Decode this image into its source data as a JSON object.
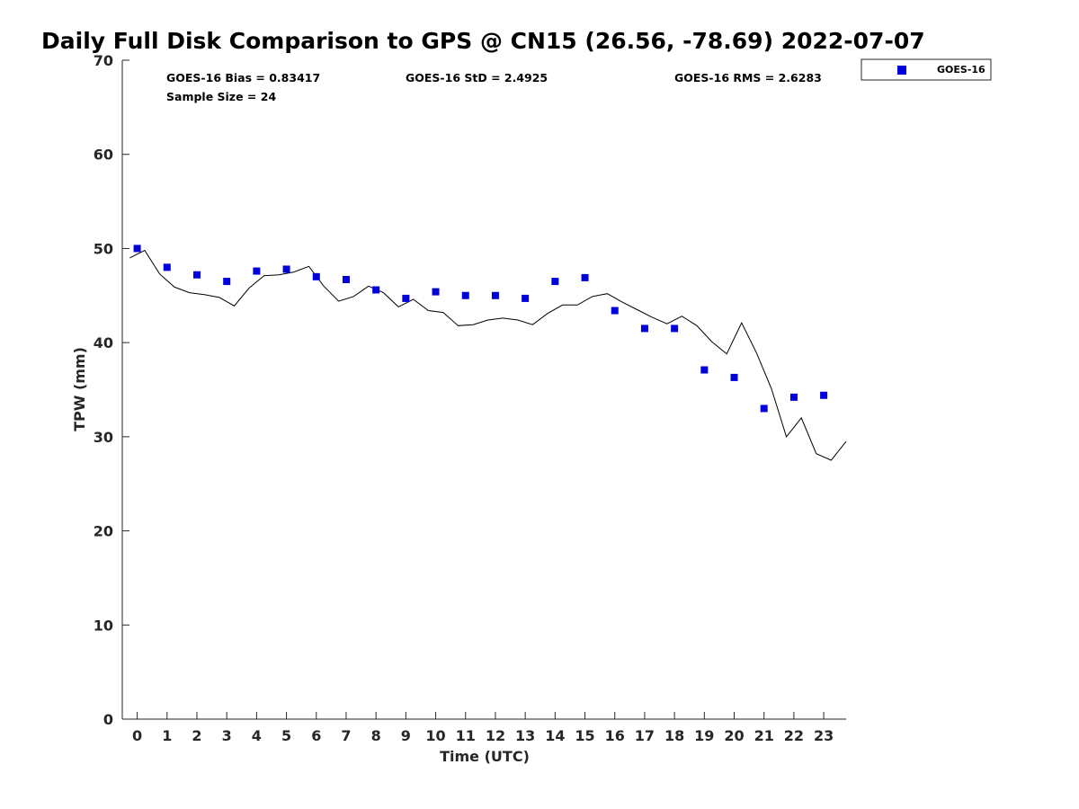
{
  "chart_data": {
    "type": "scatter",
    "title": "Daily Full Disk Comparison to GPS @ CN15 (26.56, -78.69) 2022-07-07",
    "xlabel": "Time (UTC)",
    "ylabel": "TPW (mm)",
    "xlim": [
      -0.5,
      23.75
    ],
    "ylim": [
      0,
      70
    ],
    "xticks": [
      "0",
      "1",
      "2",
      "3",
      "4",
      "5",
      "6",
      "7",
      "8",
      "9",
      "10",
      "11",
      "12",
      "13",
      "14",
      "15",
      "16",
      "17",
      "18",
      "19",
      "20",
      "21",
      "22",
      "23"
    ],
    "yticks": [
      "0",
      "10",
      "20",
      "30",
      "40",
      "50",
      "60",
      "70"
    ],
    "grid": false,
    "legend_position": "top-right outside",
    "stats": {
      "bias": "GOES-16 Bias = 0.83417",
      "std": "GOES-16 StD = 2.4925",
      "rms": "GOES-16 RMS = 2.6283",
      "sample": "Sample Size = 24"
    },
    "colors": {
      "goes": "#0000dd",
      "gps": "#000000"
    },
    "series": [
      {
        "name": "GOES-16",
        "kind": "scatter",
        "x": [
          0,
          1,
          2,
          3,
          4,
          5,
          6,
          7,
          8,
          9,
          10,
          11,
          12,
          13,
          14,
          15,
          16,
          17,
          18,
          19,
          20,
          21,
          22,
          23
        ],
        "y": [
          50.0,
          48.0,
          47.2,
          46.5,
          47.6,
          47.8,
          47.0,
          46.7,
          45.6,
          44.7,
          45.4,
          45.0,
          45.0,
          44.7,
          46.5,
          46.9,
          43.4,
          41.5,
          41.5,
          37.1,
          36.3,
          33.0,
          34.2,
          34.4
        ]
      },
      {
        "kind": "line",
        "x": [
          -0.25,
          0.25,
          0.75,
          1.25,
          1.75,
          2.25,
          2.75,
          3.25,
          3.75,
          4.25,
          4.75,
          5.25,
          5.75,
          6.25,
          6.75,
          7.25,
          7.75,
          8.25,
          8.75,
          9.25,
          9.75,
          10.25,
          10.75,
          11.25,
          11.75,
          12.25,
          12.75,
          13.25,
          13.75,
          14.25,
          14.75,
          15.25,
          15.75,
          16.25,
          16.75,
          17.25,
          17.75,
          18.25,
          18.75,
          19.25,
          19.75,
          20.25,
          20.75,
          21.25,
          21.75,
          22.25,
          22.75,
          23.25,
          23.75
        ],
        "y": [
          49.0,
          49.8,
          47.3,
          45.9,
          45.3,
          45.1,
          44.8,
          43.9,
          45.8,
          47.1,
          47.2,
          47.5,
          48.1,
          46.0,
          44.4,
          44.9,
          46.0,
          45.3,
          43.8,
          44.6,
          43.4,
          43.2,
          41.8,
          41.9,
          42.4,
          42.6,
          42.4,
          41.9,
          43.1,
          44.0,
          44.0,
          44.9,
          45.2,
          44.3,
          43.5,
          42.7,
          42.0,
          42.8,
          41.8,
          40.1,
          38.8,
          42.1,
          38.9,
          35.1,
          30.0,
          32.0,
          28.2,
          27.5,
          29.5
        ]
      }
    ]
  }
}
